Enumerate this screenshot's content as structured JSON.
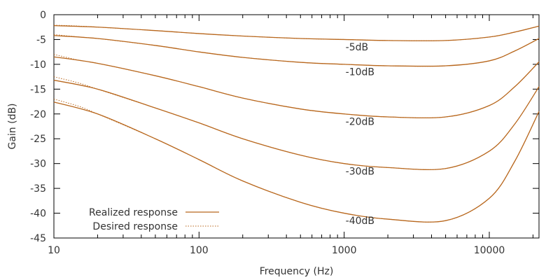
{
  "chart_data": {
    "type": "line",
    "title": "",
    "xlabel": "Frequency (Hz)",
    "ylabel": "Gain (dB)",
    "xscale": "log",
    "xlim": [
      10,
      22000
    ],
    "ylim": [
      -45,
      0
    ],
    "xticks": [
      10,
      100,
      1000,
      10000
    ],
    "xtick_labels": [
      "10",
      "100",
      "1000",
      "10000"
    ],
    "yticks": [
      0,
      -5,
      -10,
      -15,
      -20,
      -25,
      -30,
      -35,
      -40,
      -45
    ],
    "ytick_labels": [
      "0",
      "-5",
      "-10",
      "-15",
      "-20",
      "-25",
      "-30",
      "-35",
      "-40",
      "-45"
    ],
    "grid": false,
    "line_color": "#b8671d",
    "legend": {
      "position": "bottom-left",
      "entries": [
        {
          "label": "Realized response",
          "style": "solid"
        },
        {
          "label": "Desired response",
          "style": "dotted"
        }
      ]
    },
    "series": [
      {
        "name": "-5dB",
        "label_at": [
          1000,
          -6.5
        ],
        "realized": [
          [
            10,
            -2.2
          ],
          [
            20,
            -2.5
          ],
          [
            50,
            -3.2
          ],
          [
            100,
            -3.8
          ],
          [
            200,
            -4.3
          ],
          [
            500,
            -4.8
          ],
          [
            1000,
            -5.0
          ],
          [
            2000,
            -5.2
          ],
          [
            5000,
            -5.2
          ],
          [
            10000,
            -4.5
          ],
          [
            15000,
            -3.5
          ],
          [
            22000,
            -2.3
          ]
        ],
        "desired": [
          [
            10,
            -2.1
          ],
          [
            15,
            -2.3
          ],
          [
            20,
            -2.5
          ],
          [
            50,
            -3.2
          ],
          [
            100,
            -3.8
          ],
          [
            200,
            -4.3
          ],
          [
            500,
            -4.8
          ],
          [
            1000,
            -5.0
          ],
          [
            2000,
            -5.2
          ],
          [
            5000,
            -5.2
          ],
          [
            10000,
            -4.5
          ],
          [
            15000,
            -3.5
          ],
          [
            22000,
            -2.3
          ]
        ]
      },
      {
        "name": "-10dB",
        "label_at": [
          1000,
          -11.5
        ],
        "realized": [
          [
            10,
            -4.2
          ],
          [
            20,
            -4.8
          ],
          [
            50,
            -6.2
          ],
          [
            100,
            -7.5
          ],
          [
            200,
            -8.6
          ],
          [
            500,
            -9.6
          ],
          [
            1000,
            -10.0
          ],
          [
            2000,
            -10.3
          ],
          [
            5000,
            -10.3
          ],
          [
            10000,
            -9.3
          ],
          [
            15000,
            -7.3
          ],
          [
            22000,
            -4.8
          ]
        ],
        "desired": [
          [
            10,
            -4.0
          ],
          [
            15,
            -4.5
          ],
          [
            20,
            -4.8
          ],
          [
            50,
            -6.2
          ],
          [
            100,
            -7.5
          ],
          [
            200,
            -8.6
          ],
          [
            500,
            -9.6
          ],
          [
            1000,
            -10.0
          ],
          [
            2000,
            -10.3
          ],
          [
            5000,
            -10.3
          ],
          [
            10000,
            -9.3
          ],
          [
            15000,
            -7.3
          ],
          [
            22000,
            -4.8
          ]
        ]
      },
      {
        "name": "-20dB",
        "label_at": [
          1000,
          -21.5
        ],
        "realized": [
          [
            10,
            -8.5
          ],
          [
            20,
            -9.8
          ],
          [
            50,
            -12.3
          ],
          [
            100,
            -14.5
          ],
          [
            200,
            -16.8
          ],
          [
            500,
            -19.0
          ],
          [
            1000,
            -20.0
          ],
          [
            2000,
            -20.6
          ],
          [
            5000,
            -20.6
          ],
          [
            10000,
            -18.3
          ],
          [
            15000,
            -14.5
          ],
          [
            22000,
            -9.5
          ]
        ],
        "desired": [
          [
            10,
            -8.0
          ],
          [
            15,
            -9.2
          ],
          [
            20,
            -9.8
          ],
          [
            50,
            -12.3
          ],
          [
            100,
            -14.5
          ],
          [
            200,
            -16.8
          ],
          [
            500,
            -19.0
          ],
          [
            1000,
            -20.0
          ],
          [
            2000,
            -20.6
          ],
          [
            5000,
            -20.6
          ],
          [
            10000,
            -18.3
          ],
          [
            15000,
            -14.5
          ],
          [
            22000,
            -9.5
          ]
        ]
      },
      {
        "name": "-30dB",
        "label_at": [
          1000,
          -31.5
        ],
        "realized": [
          [
            10,
            -13.2
          ],
          [
            20,
            -15.0
          ],
          [
            50,
            -18.8
          ],
          [
            100,
            -21.8
          ],
          [
            200,
            -25.0
          ],
          [
            500,
            -28.3
          ],
          [
            1000,
            -30.0
          ],
          [
            2000,
            -30.8
          ],
          [
            5000,
            -31.0
          ],
          [
            10000,
            -27.5
          ],
          [
            15000,
            -22.0
          ],
          [
            22000,
            -14.5
          ]
        ],
        "desired": [
          [
            10,
            -12.5
          ],
          [
            15,
            -13.8
          ],
          [
            20,
            -15.0
          ],
          [
            50,
            -18.8
          ],
          [
            100,
            -21.8
          ],
          [
            200,
            -25.0
          ],
          [
            500,
            -28.3
          ],
          [
            1000,
            -30.0
          ],
          [
            2000,
            -30.8
          ],
          [
            5000,
            -31.0
          ],
          [
            10000,
            -27.5
          ],
          [
            15000,
            -22.0
          ],
          [
            22000,
            -14.5
          ]
        ]
      },
      {
        "name": "-40dB",
        "label_at": [
          1000,
          -41.5
        ],
        "realized": [
          [
            10,
            -17.6
          ],
          [
            20,
            -20.0
          ],
          [
            50,
            -25.0
          ],
          [
            100,
            -29.2
          ],
          [
            200,
            -33.5
          ],
          [
            500,
            -37.8
          ],
          [
            1000,
            -40.0
          ],
          [
            2000,
            -41.2
          ],
          [
            5000,
            -41.5
          ],
          [
            10000,
            -37.0
          ],
          [
            15000,
            -29.5
          ],
          [
            22000,
            -19.5
          ]
        ],
        "desired": [
          [
            10,
            -17.0
          ],
          [
            15,
            -18.5
          ],
          [
            20,
            -20.0
          ],
          [
            50,
            -25.0
          ],
          [
            100,
            -29.2
          ],
          [
            200,
            -33.5
          ],
          [
            500,
            -37.8
          ],
          [
            1000,
            -40.0
          ],
          [
            2000,
            -41.2
          ],
          [
            5000,
            -41.5
          ],
          [
            10000,
            -37.0
          ],
          [
            15000,
            -29.5
          ],
          [
            22000,
            -19.5
          ]
        ]
      }
    ]
  }
}
